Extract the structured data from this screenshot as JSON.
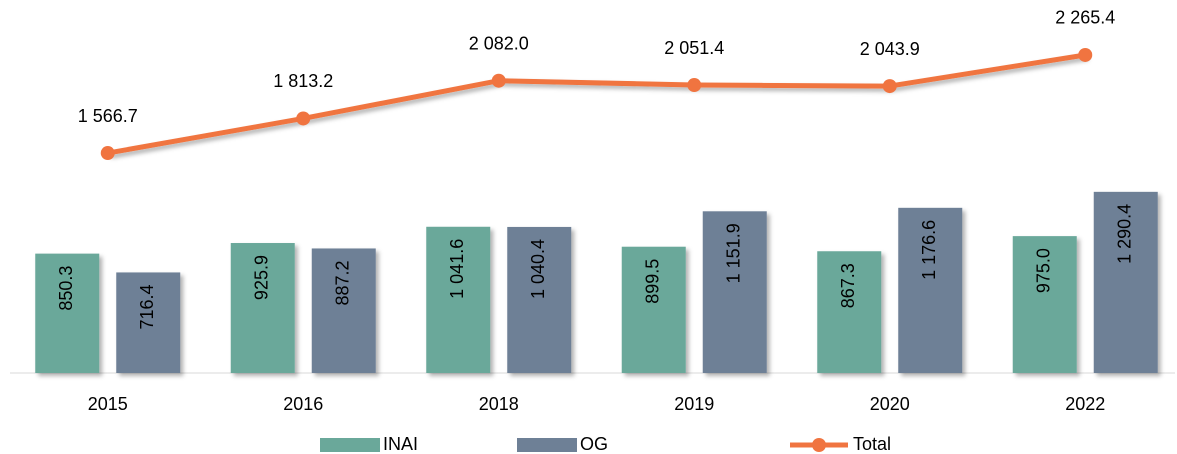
{
  "chart_data": {
    "type": "bar+line",
    "categories": [
      "2015",
      "2016",
      "2018",
      "2019",
      "2020",
      "2022"
    ],
    "series": [
      {
        "name": "INAI",
        "type": "bar",
        "color": "#6aa89a",
        "values": [
          850.3,
          925.9,
          1041.6,
          899.5,
          867.3,
          975.0
        ],
        "value_labels": [
          "850.3",
          "925.9",
          "1 041.6",
          "899.5",
          "867.3",
          "975.0"
        ]
      },
      {
        "name": "OG",
        "type": "bar",
        "color": "#6e8096",
        "values": [
          716.4,
          887.2,
          1040.4,
          1151.9,
          1176.6,
          1290.4
        ],
        "value_labels": [
          "716.4",
          "887.2",
          "1 040.4",
          "1 151.9",
          "1 176.6",
          "1 290.4"
        ]
      },
      {
        "name": "Total",
        "type": "line",
        "color": "#f07440",
        "values": [
          1566.7,
          1813.2,
          2082.0,
          2051.4,
          2043.9,
          2265.4
        ],
        "value_labels": [
          "1 566.7",
          "1 813.2",
          "2 082.0",
          "2 051.4",
          "2 043.9",
          "2 265.4"
        ]
      }
    ],
    "ylim": [
      0,
      2600
    ],
    "legend": "bottom"
  }
}
